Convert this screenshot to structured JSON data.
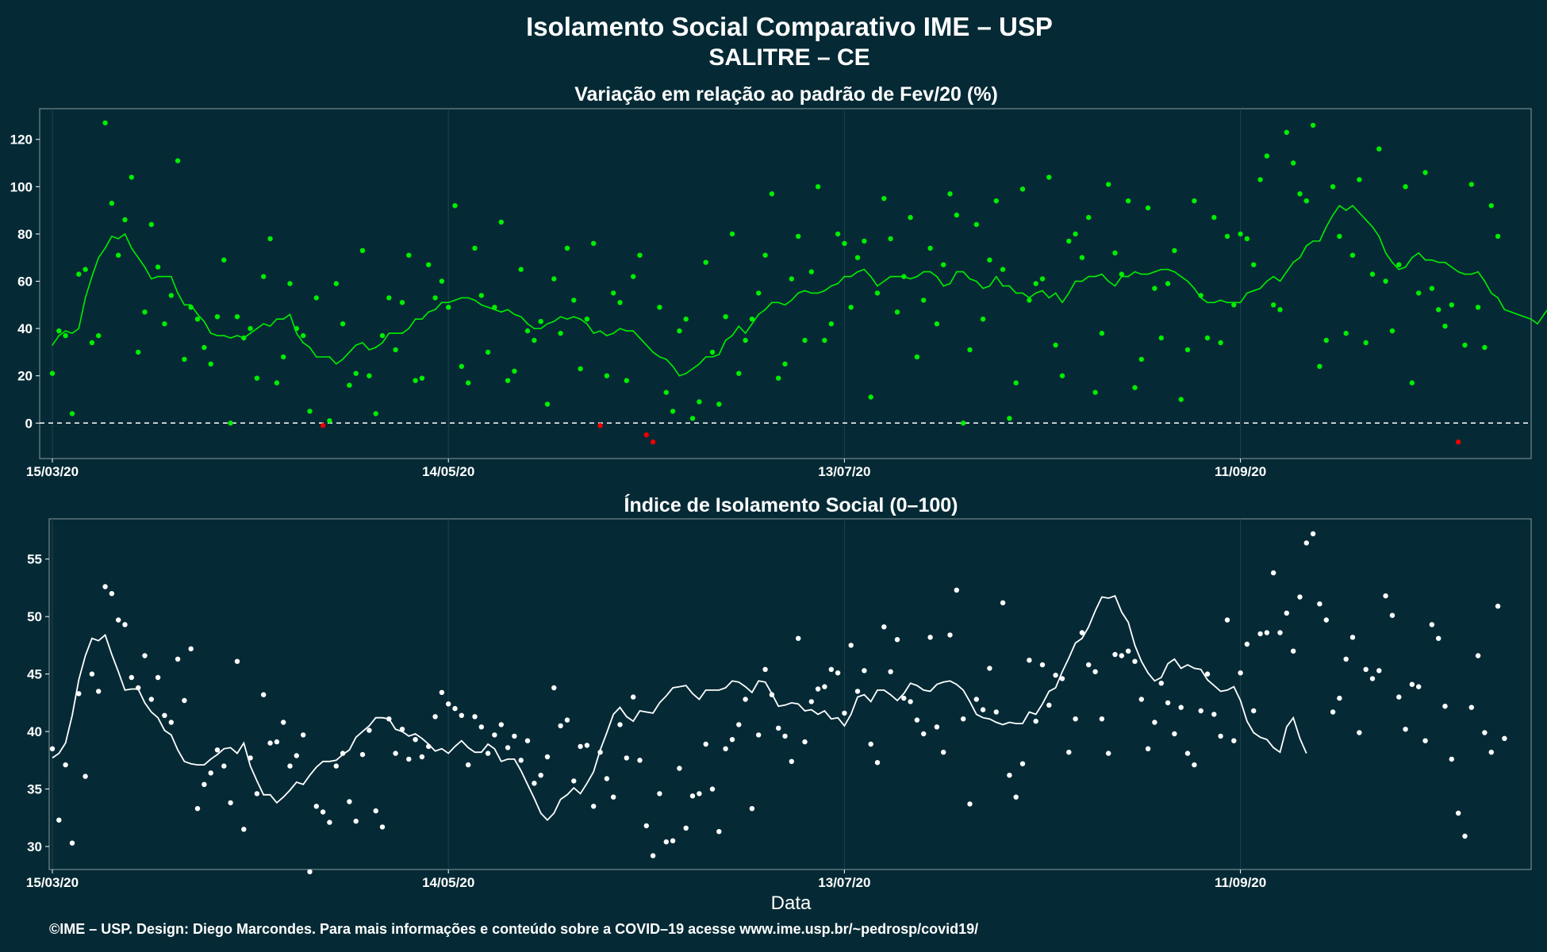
{
  "page": {
    "title": "Isolamento Social Comparativo IME – USP",
    "subtitle": "SALITRE – CE",
    "footer": "©IME – USP. Design: Diego Marcondes. Para mais informações e conteúdo sobre a COVID–19 acesse www.ime.usp.br/~pedrosp/covid19/",
    "background": "#052a35"
  },
  "chart_data": [
    {
      "type": "scatter",
      "title": "Variação em relação ao padrão de Fev/20 (%)",
      "xlabel": "",
      "ylabel": "",
      "x_start": "2020-03-15",
      "x_ticks": [
        "15/03/20",
        "14/05/20",
        "13/07/20",
        "11/09/20"
      ],
      "ylim": [
        -15,
        133
      ],
      "y_ticks": [
        0,
        20,
        40,
        60,
        80,
        100,
        120
      ],
      "grid": true,
      "reference_line": 0,
      "colors": {
        "positive": "#00ee00",
        "negative": "#ee0000",
        "line": "#00ee00",
        "reference": "#ffffff"
      },
      "series": [
        {
          "kind": "points",
          "values": [
            21,
            39,
            37,
            4,
            63,
            65,
            34,
            37,
            127,
            93,
            71,
            86,
            104,
            30,
            47,
            84,
            66,
            42,
            54,
            111,
            27,
            49,
            44,
            32,
            25,
            45,
            69,
            0,
            45,
            36,
            40,
            19,
            62,
            78,
            17,
            28,
            59,
            40,
            37,
            5,
            53,
            -1,
            1,
            59,
            42,
            16,
            21,
            73,
            20,
            4,
            37,
            53,
            31,
            51,
            71,
            18,
            19,
            67,
            53,
            60,
            49,
            92,
            24,
            17,
            74,
            54,
            30,
            49,
            85,
            18,
            22,
            65,
            39,
            35,
            43,
            8,
            61,
            38,
            74,
            52,
            23,
            44,
            76,
            -1,
            20,
            55,
            51,
            18,
            62,
            71,
            -5,
            -8,
            49,
            13,
            5,
            39,
            44,
            2,
            9,
            68,
            30,
            8,
            45,
            80,
            21,
            35,
            44,
            55,
            71,
            97,
            19,
            25,
            61,
            79,
            35,
            64,
            100,
            35,
            42,
            80,
            76,
            49,
            70,
            77,
            11,
            55,
            95,
            78,
            47,
            62,
            87,
            28,
            52,
            74,
            42,
            67,
            97,
            88,
            0,
            31,
            84,
            44,
            69,
            94,
            65,
            2,
            17,
            99,
            52,
            59,
            61,
            104,
            33,
            20,
            77,
            80,
            70,
            87,
            13,
            38,
            101,
            72,
            63,
            94,
            15,
            27,
            91,
            57,
            36,
            59,
            73,
            10,
            31,
            94,
            54,
            36,
            87,
            34,
            79,
            50,
            80,
            78,
            67,
            103,
            113,
            50,
            48,
            123,
            110,
            97,
            94,
            126,
            24,
            35,
            100,
            79,
            38,
            71,
            103,
            34,
            63,
            116,
            60,
            39,
            67,
            100,
            17,
            55,
            106,
            57,
            48,
            41,
            50,
            -8,
            33,
            101,
            49,
            32,
            92,
            79
          ]
        },
        {
          "kind": "moving_average",
          "start_index": 0,
          "values": [
            33,
            37,
            39,
            38,
            40,
            53,
            62,
            70,
            74,
            79,
            78,
            80,
            74,
            70,
            66,
            61,
            62,
            62,
            62,
            55,
            50,
            50,
            46,
            43,
            38,
            37,
            37,
            36,
            37,
            36,
            38,
            40,
            42,
            41,
            44,
            44,
            46,
            38,
            34,
            32,
            28,
            28,
            28,
            25,
            27,
            30,
            33,
            34,
            31,
            32,
            34,
            38,
            38,
            38,
            40,
            44,
            44,
            47,
            48,
            51,
            51,
            52,
            53,
            53,
            52,
            50,
            49,
            48,
            47,
            48,
            46,
            45,
            42,
            40,
            40,
            42,
            43,
            45,
            44,
            45,
            44,
            42,
            38,
            39,
            37,
            38,
            40,
            39,
            39,
            36,
            33,
            30,
            28,
            27,
            24,
            20,
            21,
            23,
            25,
            28,
            28,
            29,
            35,
            37,
            41,
            38,
            42,
            46,
            48,
            51,
            51,
            50,
            52,
            55,
            56,
            55,
            55,
            56,
            58,
            59,
            62,
            62,
            64,
            65,
            62,
            58,
            60,
            62,
            62,
            62,
            61,
            62,
            64,
            64,
            62,
            58,
            59,
            64,
            64,
            61,
            60,
            57,
            58,
            62,
            58,
            58,
            55,
            55,
            53,
            55,
            56,
            53,
            55,
            51,
            55,
            60,
            60,
            62,
            62,
            63,
            60,
            58,
            62,
            62,
            64,
            63,
            63,
            64,
            65,
            65,
            64,
            62,
            60,
            57,
            53,
            51,
            51,
            52,
            51,
            51,
            51,
            55,
            56,
            57,
            60,
            62,
            60,
            64,
            68,
            70,
            75,
            77,
            77,
            83,
            88,
            92,
            90,
            92,
            89,
            86,
            83,
            79,
            72,
            68,
            65,
            66,
            70,
            72,
            69,
            69,
            68,
            68,
            66,
            64,
            63,
            63,
            64,
            60,
            55,
            53,
            48,
            47,
            46,
            45,
            44,
            42,
            46,
            50,
            53
          ]
        }
      ]
    },
    {
      "type": "scatter",
      "title": "Índice de Isolamento Social (0–100)",
      "xlabel": "Data",
      "ylabel": "",
      "x_start": "2020-03-15",
      "x_ticks": [
        "15/03/20",
        "14/05/20",
        "13/07/20",
        "11/09/20"
      ],
      "ylim": [
        28,
        58.5
      ],
      "y_ticks": [
        30,
        35,
        40,
        45,
        50,
        55
      ],
      "grid": true,
      "colors": {
        "points": "#ffffff",
        "line": "#ffffff"
      },
      "series": [
        {
          "kind": "points",
          "values": [
            38.5,
            32.3,
            37.1,
            30.3,
            43.3,
            36.1,
            45,
            43.5,
            52.6,
            52,
            49.7,
            49.3,
            44.7,
            43.8,
            46.6,
            42.8,
            44.7,
            41.4,
            40.8,
            46.3,
            42.7,
            47.2,
            33.3,
            35.4,
            36.4,
            38.4,
            37,
            33.8,
            46.1,
            31.5,
            37.7,
            34.6,
            43.2,
            39,
            39.1,
            40.8,
            37,
            37.9,
            39.7,
            27.8,
            33.5,
            33,
            32.1,
            37,
            38.1,
            33.9,
            32.2,
            38,
            40.1,
            33.1,
            31.7,
            41.1,
            38.1,
            40.2,
            37.6,
            39.3,
            37.8,
            38.7,
            41.3,
            43.4,
            42.4,
            42,
            41.4,
            37.1,
            41.3,
            40.4,
            38.1,
            39.7,
            40.6,
            38.6,
            39.6,
            37.5,
            39.2,
            35.5,
            36.2,
            37.8,
            43.8,
            40.5,
            41,
            35.7,
            38.7,
            38.8,
            33.5,
            38.2,
            35.9,
            34.3,
            40.6,
            37.7,
            43,
            37.5,
            31.8,
            29.2,
            34.6,
            30.4,
            30.5,
            36.8,
            31.6,
            34.4,
            34.6,
            38.9,
            35,
            31.3,
            38.5,
            39.3,
            40.6,
            42.8,
            33.3,
            39.7,
            45.4,
            43.2,
            40.3,
            39.6,
            37.4,
            48.1,
            39.1,
            42.6,
            43.7,
            43.9,
            45.4,
            45.1,
            41.6,
            47.5,
            43.5,
            45.3,
            38.9,
            37.3,
            49.1,
            45.2,
            48,
            42.9,
            42.6,
            41,
            39.8,
            48.2,
            40.4,
            38.2,
            48.4,
            52.3,
            41.1,
            33.7,
            42.8,
            41.9,
            45.5,
            41.7,
            51.2,
            36.2,
            34.3,
            37.2,
            46.2,
            40.9,
            45.8,
            42.3,
            44.9,
            44.6,
            38.2,
            41.1,
            48.6,
            45.8,
            45.2,
            41.1,
            38.1,
            46.7,
            46.6,
            47,
            46.1,
            42.8,
            38.5,
            40.8,
            44.2,
            42.5,
            39.8,
            42.1,
            38.1,
            37.1,
            41.8,
            45,
            41.5,
            39.6,
            49.7,
            39.2,
            45.1,
            47.6,
            41.8,
            48.5,
            48.6,
            53.8,
            48.6,
            50.3,
            47,
            51.7,
            56.4,
            57.2,
            51.1,
            49.7,
            41.7,
            42.9,
            46.3,
            48.2,
            39.9,
            45.4,
            44.6,
            45.3,
            51.8,
            50.1,
            43,
            40.2,
            44.1,
            43.9,
            39.2,
            49.3,
            48.1,
            42.2,
            37.6,
            32.9,
            30.9,
            42.1,
            46.6,
            39.9,
            38.2,
            50.9,
            39.4
          ]
        },
        {
          "kind": "moving_average",
          "start_index": 0,
          "values": [
            37.7,
            38.1,
            39,
            41.4,
            44.5,
            46.6,
            48.1,
            47.9,
            48.4,
            46.7,
            45.2,
            43.6,
            43.7,
            43.7,
            42.5,
            41.7,
            41.2,
            40.1,
            39.7,
            38.4,
            37.4,
            37.2,
            37.1,
            37.1,
            37.6,
            38,
            38.5,
            38.6,
            38.1,
            39,
            37,
            35.7,
            34.5,
            34.5,
            33.8,
            34.3,
            34.9,
            35.6,
            35.4,
            36.2,
            36.9,
            37.4,
            37.4,
            37.5,
            38,
            38.4,
            39.5,
            40,
            40.5,
            41.2,
            41.2,
            41.1,
            40.2,
            40,
            39.6,
            39.8,
            39.4,
            38.9,
            38.3,
            38.5,
            38.1,
            38.7,
            39.2,
            38.6,
            38.2,
            38.2,
            38.9,
            38.5,
            37.4,
            37.6,
            37.6,
            36.6,
            35.4,
            34.2,
            32.9,
            32.3,
            32.9,
            34.1,
            34.5,
            35.1,
            34.6,
            35.5,
            36.5,
            38.4,
            39.9,
            41.5,
            42.1,
            41.3,
            40.9,
            41.8,
            41.7,
            41.6,
            42.5,
            43.1,
            43.8,
            43.9,
            44,
            43.3,
            42.8,
            43.6,
            43.6,
            43.6,
            43.8,
            44.4,
            44.3,
            43.9,
            43.4,
            44.4,
            44.3,
            43.3,
            42.2,
            42.3,
            42.5,
            42.4,
            41.8,
            41.9,
            41.5,
            41.8,
            41.1,
            41.2,
            40.5,
            41.5,
            43,
            43.2,
            42.6,
            43.6,
            43.6,
            43.2,
            42.7,
            43.3,
            44.2,
            44,
            43.6,
            43.5,
            44.1,
            44.3,
            44.4,
            44.1,
            43.6,
            42.6,
            41.5,
            41.2,
            41.1,
            40.8,
            40.6,
            40.8,
            40.7,
            40.7,
            41.7,
            41.5,
            42.4,
            43.5,
            43.8,
            45.2,
            46.4,
            47.7,
            48.1,
            49.1,
            50.5,
            51.7,
            51.6,
            51.8,
            50.4,
            49.5,
            47.5,
            46.1,
            45.1,
            44.4,
            44.7,
            45.9,
            46.3,
            45.5,
            45.8,
            45.5,
            45.4,
            44.5,
            44,
            43.5,
            43.6,
            43.9,
            42.7,
            40.9,
            39.9,
            39.5,
            39.3,
            38.6,
            38.2,
            40.4,
            41.2,
            39.4,
            38.1
          ]
        }
      ]
    }
  ]
}
